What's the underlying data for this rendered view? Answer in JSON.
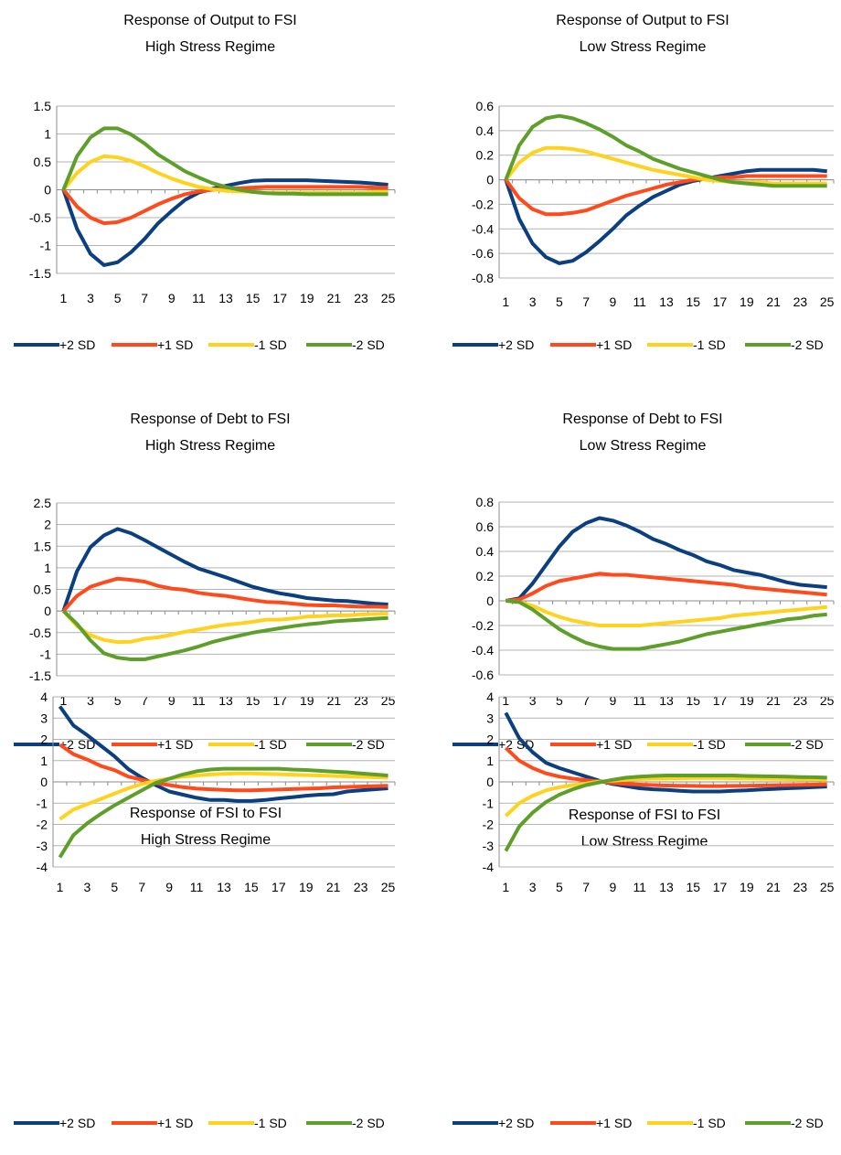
{
  "colors": {
    "plus2": "#0b3f80",
    "plus1": "#ff4a1c",
    "minus1": "#ffd21e",
    "minus2": "#5e9f2a",
    "grid": "#b3b3b3",
    "axis": "#8c8c8c"
  },
  "chart_data": [
    {
      "type": "line",
      "title": [
        "Response of Output to FSI",
        "High Stress Regime"
      ],
      "x": [
        1,
        2,
        3,
        4,
        5,
        6,
        7,
        8,
        9,
        10,
        11,
        12,
        13,
        14,
        15,
        16,
        17,
        18,
        19,
        20,
        21,
        22,
        23,
        24,
        25
      ],
      "xticks": [
        "1",
        "3",
        "5",
        "7",
        "9",
        "11",
        "13",
        "15",
        "17",
        "19",
        "21",
        "23",
        "25"
      ],
      "ylim": [
        -1.5,
        1.5
      ],
      "yticks": [
        "1.5",
        "1",
        "0.5",
        "0",
        "-0.5",
        "-1",
        "-1.5"
      ],
      "ytick_values": [
        1.5,
        1,
        0.5,
        0,
        -0.5,
        -1,
        -1.5
      ],
      "series": [
        {
          "name": "+2 SD",
          "values": [
            0,
            -0.7,
            -1.15,
            -1.35,
            -1.3,
            -1.12,
            -0.88,
            -0.6,
            -0.38,
            -0.18,
            -0.05,
            0.02,
            0.07,
            0.12,
            0.16,
            0.17,
            0.17,
            0.17,
            0.17,
            0.16,
            0.15,
            0.14,
            0.13,
            0.11,
            0.09
          ]
        },
        {
          "name": "+1 SD",
          "values": [
            0,
            -0.3,
            -0.5,
            -0.6,
            -0.58,
            -0.5,
            -0.38,
            -0.26,
            -0.16,
            -0.08,
            -0.03,
            0,
            0.02,
            0.03,
            0.04,
            0.05,
            0.05,
            0.05,
            0.05,
            0.05,
            0.05,
            0.05,
            0.05,
            0.04,
            0.04
          ]
        },
        {
          "name": "-1 SD",
          "values": [
            0,
            0.3,
            0.5,
            0.6,
            0.58,
            0.52,
            0.42,
            0.3,
            0.2,
            0.12,
            0.05,
            0.01,
            -0.02,
            -0.03,
            -0.04,
            -0.05,
            -0.05,
            -0.05,
            -0.05,
            -0.05,
            -0.05,
            -0.05,
            -0.05,
            -0.04,
            -0.04
          ]
        },
        {
          "name": "-2 SD",
          "values": [
            0,
            0.6,
            0.94,
            1.1,
            1.1,
            0.99,
            0.83,
            0.63,
            0.48,
            0.33,
            0.22,
            0.12,
            0.05,
            0,
            -0.04,
            -0.06,
            -0.07,
            -0.07,
            -0.08,
            -0.08,
            -0.08,
            -0.08,
            -0.08,
            -0.08,
            -0.08
          ]
        }
      ]
    },
    {
      "type": "line",
      "title": [
        "Response of Output to FSI",
        "Low Stress Regime"
      ],
      "x": [
        1,
        2,
        3,
        4,
        5,
        6,
        7,
        8,
        9,
        10,
        11,
        12,
        13,
        14,
        15,
        16,
        17,
        18,
        19,
        20,
        21,
        22,
        23,
        24,
        25
      ],
      "xticks": [
        "1",
        "3",
        "5",
        "7",
        "9",
        "11",
        "13",
        "15",
        "17",
        "19",
        "21",
        "23",
        "25"
      ],
      "ylim": [
        -0.8,
        0.6
      ],
      "yticks": [
        "0.6",
        "0.4",
        "0.2",
        "0",
        "-0.2",
        "-0.4",
        "-0.6",
        "-0.8"
      ],
      "ytick_values": [
        0.6,
        0.4,
        0.2,
        0,
        -0.2,
        -0.4,
        -0.6,
        -0.8
      ],
      "series": [
        {
          "name": "+2 SD",
          "values": [
            0,
            -0.32,
            -0.52,
            -0.63,
            -0.68,
            -0.66,
            -0.59,
            -0.5,
            -0.4,
            -0.29,
            -0.21,
            -0.14,
            -0.09,
            -0.04,
            -0.01,
            0.01,
            0.03,
            0.05,
            0.07,
            0.08,
            0.08,
            0.08,
            0.08,
            0.08,
            0.07
          ]
        },
        {
          "name": "+1 SD",
          "values": [
            0,
            -0.15,
            -0.24,
            -0.28,
            -0.28,
            -0.27,
            -0.25,
            -0.21,
            -0.17,
            -0.13,
            -0.1,
            -0.07,
            -0.04,
            -0.02,
            0,
            0.01,
            0.02,
            0.02,
            0.03,
            0.03,
            0.03,
            0.03,
            0.03,
            0.03,
            0.03
          ]
        },
        {
          "name": "-1 SD",
          "values": [
            0,
            0.14,
            0.22,
            0.26,
            0.26,
            0.25,
            0.23,
            0.2,
            0.17,
            0.14,
            0.11,
            0.08,
            0.06,
            0.04,
            0.02,
            0,
            -0.01,
            -0.02,
            -0.02,
            -0.02,
            -0.03,
            -0.03,
            -0.03,
            -0.03,
            -0.03
          ]
        },
        {
          "name": "-2 SD",
          "values": [
            0,
            0.28,
            0.43,
            0.5,
            0.52,
            0.5,
            0.46,
            0.41,
            0.35,
            0.28,
            0.23,
            0.17,
            0.13,
            0.09,
            0.06,
            0.03,
            0,
            -0.02,
            -0.03,
            -0.04,
            -0.05,
            -0.05,
            -0.05,
            -0.05,
            -0.05
          ]
        }
      ]
    },
    {
      "type": "line",
      "title": [
        "Response of Debt to FSI",
        "High Stress Regime"
      ],
      "x": [
        1,
        2,
        3,
        4,
        5,
        6,
        7,
        8,
        9,
        10,
        11,
        12,
        13,
        14,
        15,
        16,
        17,
        18,
        19,
        20,
        21,
        22,
        23,
        24,
        25
      ],
      "xticks": [
        "1",
        "3",
        "5",
        "7",
        "9",
        "11",
        "13",
        "15",
        "17",
        "19",
        "21",
        "23",
        "25"
      ],
      "ylim": [
        -1.5,
        2.5
      ],
      "yticks": [
        "2.5",
        "2",
        "1.5",
        "1",
        "0.5",
        "0",
        "-0.5",
        "-1",
        "-1.5"
      ],
      "ytick_values": [
        2.5,
        2,
        1.5,
        1,
        0.5,
        0,
        -0.5,
        -1,
        -1.5
      ],
      "series": [
        {
          "name": "+2 SD",
          "values": [
            0,
            0.92,
            1.48,
            1.75,
            1.9,
            1.8,
            1.64,
            1.47,
            1.3,
            1.13,
            0.98,
            0.88,
            0.78,
            0.67,
            0.56,
            0.48,
            0.41,
            0.36,
            0.3,
            0.27,
            0.24,
            0.23,
            0.2,
            0.17,
            0.15
          ]
        },
        {
          "name": "+1 SD",
          "values": [
            0,
            0.35,
            0.56,
            0.66,
            0.75,
            0.72,
            0.68,
            0.58,
            0.52,
            0.49,
            0.42,
            0.38,
            0.35,
            0.3,
            0.25,
            0.21,
            0.2,
            0.17,
            0.14,
            0.13,
            0.13,
            0.11,
            0.1,
            0.1,
            0.09
          ]
        },
        {
          "name": "-1 SD",
          "values": [
            0,
            -0.35,
            -0.56,
            -0.67,
            -0.72,
            -0.71,
            -0.64,
            -0.61,
            -0.55,
            -0.48,
            -0.43,
            -0.37,
            -0.32,
            -0.29,
            -0.25,
            -0.2,
            -0.2,
            -0.17,
            -0.13,
            -0.12,
            -0.1,
            -0.1,
            -0.08,
            -0.07,
            -0.06
          ]
        },
        {
          "name": "-2 SD",
          "values": [
            0,
            -0.3,
            -0.68,
            -0.98,
            -1.08,
            -1.12,
            -1.12,
            -1.05,
            -0.98,
            -0.91,
            -0.82,
            -0.72,
            -0.64,
            -0.57,
            -0.5,
            -0.45,
            -0.4,
            -0.35,
            -0.31,
            -0.28,
            -0.24,
            -0.22,
            -0.2,
            -0.18,
            -0.16
          ]
        }
      ]
    },
    {
      "type": "line",
      "title": [
        "Response of Debt to FSI",
        "Low Stress Regime"
      ],
      "x": [
        1,
        2,
        3,
        4,
        5,
        6,
        7,
        8,
        9,
        10,
        11,
        12,
        13,
        14,
        15,
        16,
        17,
        18,
        19,
        20,
        21,
        22,
        23,
        24,
        25
      ],
      "xticks": [
        "1",
        "3",
        "5",
        "7",
        "9",
        "11",
        "13",
        "15",
        "17",
        "19",
        "21",
        "23",
        "25"
      ],
      "ylim": [
        -0.6,
        0.8
      ],
      "yticks": [
        "0.8",
        "0.6",
        "0.4",
        "0.2",
        "0",
        "-0.2",
        "-0.4",
        "-0.6"
      ],
      "ytick_values": [
        0.8,
        0.6,
        0.4,
        0.2,
        0,
        -0.2,
        -0.4,
        -0.6
      ],
      "series": [
        {
          "name": "+2 SD",
          "values": [
            0,
            0.02,
            0.14,
            0.29,
            0.44,
            0.56,
            0.63,
            0.67,
            0.65,
            0.61,
            0.56,
            0.5,
            0.46,
            0.41,
            0.37,
            0.32,
            0.29,
            0.25,
            0.23,
            0.21,
            0.18,
            0.15,
            0.13,
            0.12,
            0.11
          ]
        },
        {
          "name": "+1 SD",
          "values": [
            0,
            0.01,
            0.06,
            0.12,
            0.16,
            0.18,
            0.2,
            0.22,
            0.21,
            0.21,
            0.2,
            0.19,
            0.18,
            0.17,
            0.16,
            0.15,
            0.14,
            0.13,
            0.11,
            0.1,
            0.09,
            0.08,
            0.07,
            0.06,
            0.05
          ]
        },
        {
          "name": "-1 SD",
          "values": [
            0,
            -0.01,
            -0.04,
            -0.09,
            -0.13,
            -0.16,
            -0.18,
            -0.2,
            -0.2,
            -0.2,
            -0.2,
            -0.19,
            -0.18,
            -0.17,
            -0.16,
            -0.15,
            -0.14,
            -0.12,
            -0.11,
            -0.1,
            -0.09,
            -0.08,
            -0.07,
            -0.06,
            -0.05
          ]
        },
        {
          "name": "-2 SD",
          "values": [
            0,
            -0.01,
            -0.07,
            -0.15,
            -0.23,
            -0.29,
            -0.34,
            -0.37,
            -0.39,
            -0.39,
            -0.39,
            -0.37,
            -0.35,
            -0.33,
            -0.3,
            -0.27,
            -0.25,
            -0.23,
            -0.21,
            -0.19,
            -0.17,
            -0.15,
            -0.14,
            -0.12,
            -0.11
          ]
        }
      ]
    },
    {
      "type": "line",
      "title": [
        "Response of FSI to FSI",
        "High Stress Regime"
      ],
      "x": [
        1,
        2,
        3,
        4,
        5,
        6,
        7,
        8,
        9,
        10,
        11,
        12,
        13,
        14,
        15,
        16,
        17,
        18,
        19,
        20,
        21,
        22,
        23,
        24,
        25
      ],
      "xticks": [
        "1",
        "3",
        "5",
        "7",
        "9",
        "11",
        "13",
        "15",
        "17",
        "19",
        "21",
        "23",
        "25"
      ],
      "ylim": [
        -4,
        4
      ],
      "yticks": [
        "4",
        "3",
        "2",
        "1",
        "0",
        "-1",
        "-2",
        "-3",
        "-4"
      ],
      "ytick_values": [
        4,
        3,
        2,
        1,
        0,
        -1,
        -2,
        -3,
        -4
      ],
      "series": [
        {
          "name": "+2 SD",
          "values": [
            3.55,
            2.65,
            2.2,
            1.7,
            1.2,
            0.6,
            0.2,
            -0.15,
            -0.45,
            -0.6,
            -0.75,
            -0.85,
            -0.85,
            -0.9,
            -0.9,
            -0.85,
            -0.78,
            -0.72,
            -0.65,
            -0.6,
            -0.58,
            -0.45,
            -0.4,
            -0.35,
            -0.3
          ]
        },
        {
          "name": "+1 SD",
          "values": [
            1.75,
            1.3,
            1.05,
            0.75,
            0.55,
            0.25,
            0.1,
            -0.05,
            -0.15,
            -0.25,
            -0.32,
            -0.35,
            -0.38,
            -0.4,
            -0.4,
            -0.38,
            -0.36,
            -0.34,
            -0.32,
            -0.3,
            -0.26,
            -0.24,
            -0.22,
            -0.2,
            -0.18
          ]
        },
        {
          "name": "-1 SD",
          "values": [
            -1.75,
            -1.3,
            -1.05,
            -0.8,
            -0.55,
            -0.3,
            -0.1,
            0.05,
            0.15,
            0.25,
            0.3,
            0.35,
            0.38,
            0.4,
            0.4,
            0.38,
            0.36,
            0.34,
            0.32,
            0.3,
            0.28,
            0.26,
            0.24,
            0.22,
            0.2
          ]
        },
        {
          "name": "-2 SD",
          "values": [
            -3.55,
            -2.5,
            -1.95,
            -1.5,
            -1.1,
            -0.75,
            -0.4,
            -0.05,
            0.15,
            0.35,
            0.5,
            0.58,
            0.62,
            0.62,
            0.62,
            0.62,
            0.62,
            0.58,
            0.56,
            0.52,
            0.48,
            0.45,
            0.4,
            0.35,
            0.3
          ]
        }
      ]
    },
    {
      "type": "line",
      "title": [
        "Response of FSI to FSI",
        "Low Stress Regime"
      ],
      "x": [
        1,
        2,
        3,
        4,
        5,
        6,
        7,
        8,
        9,
        10,
        11,
        12,
        13,
        14,
        15,
        16,
        17,
        18,
        19,
        20,
        21,
        22,
        23,
        24,
        25
      ],
      "xticks": [
        "1",
        "3",
        "5",
        "7",
        "9",
        "11",
        "13",
        "15",
        "17",
        "19",
        "21",
        "23",
        "25"
      ],
      "ylim": [
        -4,
        4
      ],
      "yticks": [
        "4",
        "3",
        "2",
        "1",
        "0",
        "-1",
        "-2",
        "-3",
        "-4"
      ],
      "ytick_values": [
        4,
        3,
        2,
        1,
        0,
        -1,
        -2,
        -3,
        -4
      ],
      "series": [
        {
          "name": "+2 SD",
          "values": [
            3.25,
            2.05,
            1.4,
            0.9,
            0.65,
            0.45,
            0.25,
            0.05,
            -0.1,
            -0.2,
            -0.3,
            -0.35,
            -0.38,
            -0.42,
            -0.45,
            -0.45,
            -0.45,
            -0.42,
            -0.4,
            -0.36,
            -0.33,
            -0.3,
            -0.28,
            -0.25,
            -0.22
          ]
        },
        {
          "name": "+1 SD",
          "values": [
            1.6,
            1.0,
            0.65,
            0.4,
            0.25,
            0.15,
            0.08,
            0.02,
            -0.05,
            -0.1,
            -0.13,
            -0.15,
            -0.17,
            -0.18,
            -0.19,
            -0.2,
            -0.2,
            -0.19,
            -0.18,
            -0.17,
            -0.16,
            -0.15,
            -0.14,
            -0.13,
            -0.12
          ]
        },
        {
          "name": "-1 SD",
          "values": [
            -1.6,
            -1.0,
            -0.65,
            -0.4,
            -0.25,
            -0.15,
            -0.08,
            0.02,
            0.05,
            0.1,
            0.13,
            0.15,
            0.16,
            0.17,
            0.18,
            0.18,
            0.18,
            0.17,
            0.16,
            0.15,
            0.14,
            0.13,
            0.12,
            0.11,
            0.1
          ]
        },
        {
          "name": "-2 SD",
          "values": [
            -3.25,
            -2.1,
            -1.45,
            -0.95,
            -0.6,
            -0.35,
            -0.15,
            -0.02,
            0.1,
            0.2,
            0.25,
            0.28,
            0.3,
            0.3,
            0.3,
            0.3,
            0.3,
            0.3,
            0.28,
            0.27,
            0.26,
            0.25,
            0.23,
            0.22,
            0.2
          ]
        }
      ]
    }
  ]
}
